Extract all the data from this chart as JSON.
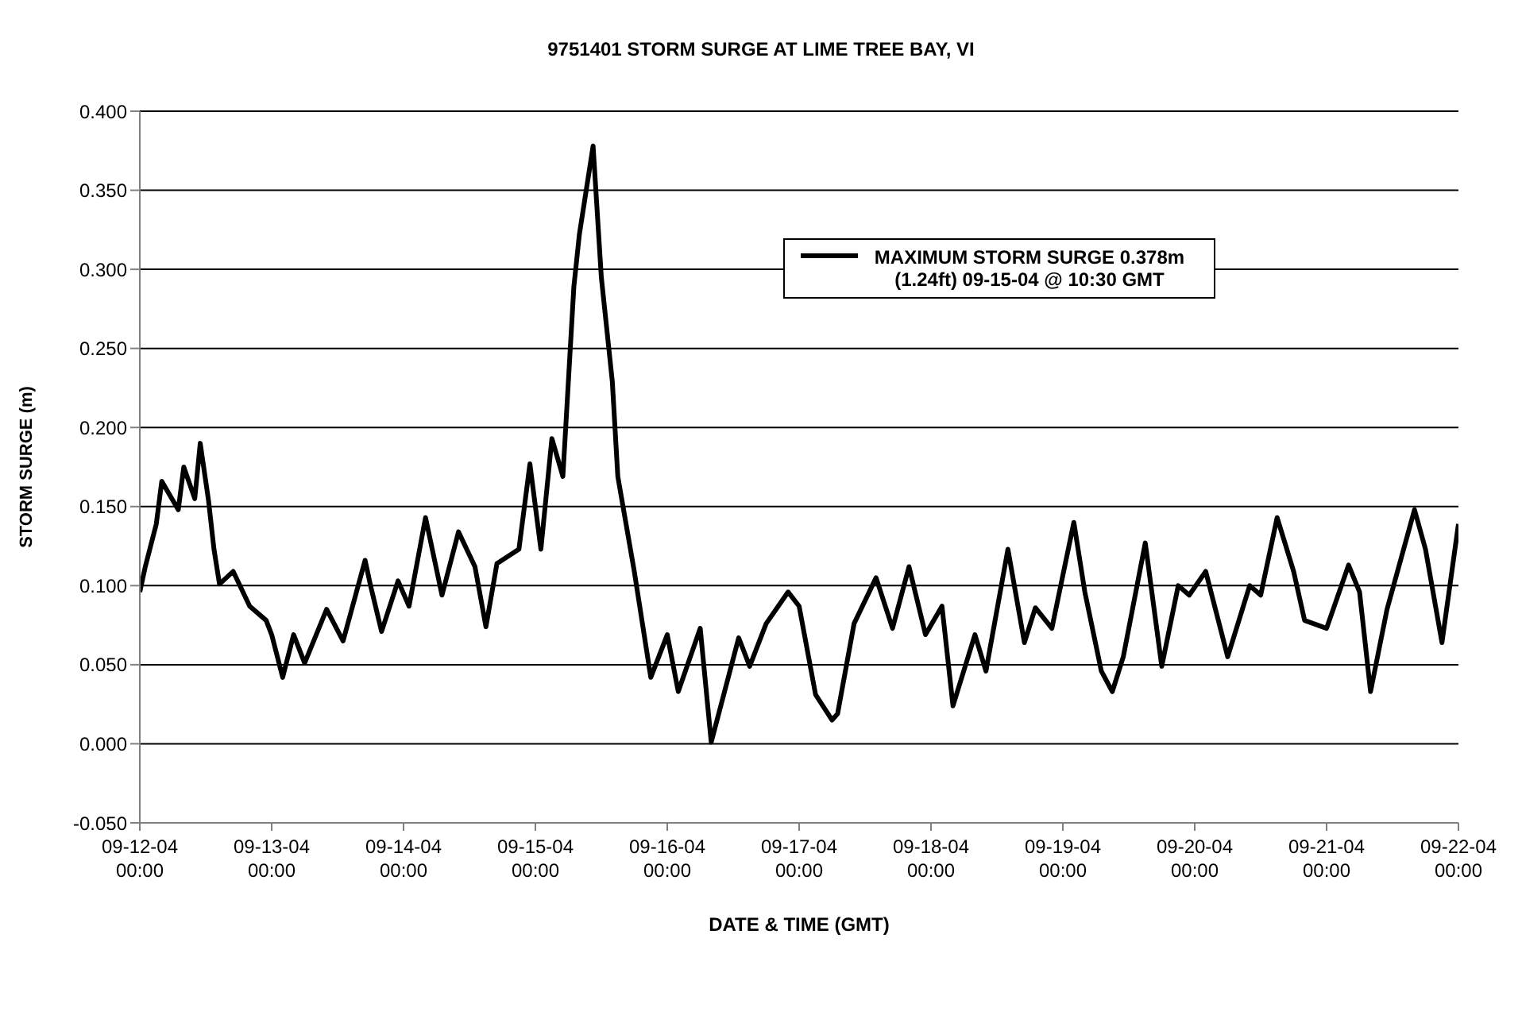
{
  "chart_data": {
    "type": "line",
    "title": "9751401 STORM SURGE AT LIME TREE BAY, VI",
    "xlabel": "DATE & TIME (GMT)",
    "ylabel": "STORM SURGE (m)",
    "x": [
      "--09-12T00:00",
      "--09-12T01:00",
      "--09-12T03:00",
      "--09-12T04:00",
      "--09-12T07:00",
      "--09-12T08:00",
      "--09-12T10:00",
      "--09-12T11:00",
      "--09-12T12:30",
      "--09-12T13:30",
      "--09-12T14:30",
      "--09-12T17:00",
      "--09-12T20:00",
      "--09-12T23:00",
      "--09-13T00:00",
      "--09-13T02:00",
      "--09-13T04:00",
      "--09-13T06:00",
      "--09-13T10:00",
      "--09-13T13:00",
      "--09-13T17:00",
      "--09-13T18:00",
      "--09-13T20:00",
      "--09-13T23:00",
      "--09-14T01:00",
      "--09-14T04:00",
      "--09-14T07:00",
      "--09-14T10:00",
      "--09-14T13:00",
      "--09-14T15:00",
      "--09-14T17:00",
      "--09-14T21:00",
      "--09-14T23:00",
      "--09-15T01:00",
      "--09-15T03:00",
      "--09-15T05:00",
      "--09-15T06:00",
      "--09-15T07:00",
      "--09-15T08:00",
      "--09-15T10:30",
      "--09-15T12:00",
      "--09-15T14:00",
      "--09-15T15:00",
      "--09-15T18:00",
      "--09-15T21:00",
      "--09-16T00:00",
      "--09-16T02:00",
      "--09-16T06:00",
      "--09-16T08:00",
      "--09-16T13:00",
      "--09-16T15:00",
      "--09-16T18:00",
      "--09-16T22:00",
      "--09-17T00:00",
      "--09-17T03:00",
      "--09-17T06:00",
      "--09-17T07:00",
      "--09-17T10:00",
      "--09-17T14:00",
      "--09-17T17:00",
      "--09-17T20:00",
      "--09-17T23:00",
      "--09-18T02:00",
      "--09-18T04:00",
      "--09-18T08:00",
      "--09-18T10:00",
      "--09-18T14:00",
      "--09-18T17:00",
      "--09-18T19:00",
      "--09-18T22:00",
      "--09-19T02:00",
      "--09-19T04:00",
      "--09-19T07:00",
      "--09-19T09:00",
      "--09-19T11:00",
      "--09-19T15:00",
      "--09-19T18:00",
      "--09-19T21:00",
      "--09-19T23:00",
      "--09-20T02:00",
      "--09-20T06:00",
      "--09-20T10:00",
      "--09-20T12:00",
      "--09-20T15:00",
      "--09-20T18:00",
      "--09-20T20:00",
      "--09-21T00:00",
      "--09-21T04:00",
      "--09-21T06:00",
      "--09-21T08:00",
      "--09-21T11:00",
      "--09-21T16:00",
      "--09-21T18:00",
      "--09-21T21:00",
      "--09-22T00:00"
    ],
    "series": [
      {
        "name": "MAXIMUM STORM SURGE 0.378m (1.24ft) 09-15-04 @ 10:30 GMT",
        "color": "#000000",
        "values": [
          0.096,
          0.112,
          0.139,
          0.166,
          0.148,
          0.175,
          0.155,
          0.19,
          0.154,
          0.123,
          0.101,
          0.109,
          0.087,
          0.078,
          0.069,
          0.042,
          0.069,
          0.051,
          0.085,
          0.065,
          0.116,
          0.1,
          0.071,
          0.103,
          0.087,
          0.143,
          0.094,
          0.134,
          0.112,
          0.074,
          0.114,
          0.123,
          0.177,
          0.123,
          0.193,
          0.169,
          0.229,
          0.289,
          0.322,
          0.378,
          0.295,
          0.229,
          0.169,
          0.109,
          0.042,
          0.069,
          0.033,
          0.073,
          0.001,
          0.067,
          0.049,
          0.076,
          0.096,
          0.087,
          0.031,
          0.015,
          0.019,
          0.076,
          0.105,
          0.073,
          0.112,
          0.069,
          0.087,
          0.024,
          0.069,
          0.046,
          0.123,
          0.064,
          0.086,
          0.073,
          0.14,
          0.096,
          0.046,
          0.033,
          0.055,
          0.127,
          0.049,
          0.1,
          0.094,
          0.109,
          0.055,
          0.1,
          0.094,
          0.143,
          0.109,
          0.078,
          0.073,
          0.113,
          0.096,
          0.033,
          0.085,
          0.148,
          0.123,
          0.064,
          0.139
        ]
      }
    ],
    "xlim": [
      "--09-12T00:00",
      "--09-22T00:00"
    ],
    "xticks": [
      {
        "value": "--09-12T00:00",
        "label": "09-12-04 00:00"
      },
      {
        "value": "--09-13T00:00",
        "label": "09-13-04 00:00"
      },
      {
        "value": "--09-14T00:00",
        "label": "09-14-04 00:00"
      },
      {
        "value": "--09-15T00:00",
        "label": "09-15-04 00:00"
      },
      {
        "value": "--09-16T00:00",
        "label": "09-16-04 00:00"
      },
      {
        "value": "--09-17T00:00",
        "label": "09-17-04 00:00"
      },
      {
        "value": "--09-18T00:00",
        "label": "09-18-04 00:00"
      },
      {
        "value": "--09-19T00:00",
        "label": "09-19-04 00:00"
      },
      {
        "value": "--09-20T00:00",
        "label": "09-20-04 00:00"
      },
      {
        "value": "--09-21T00:00",
        "label": "09-21-04 00:00"
      },
      {
        "value": "--09-22T00:00",
        "label": "09-22-04 00:00"
      }
    ],
    "ylim": [
      -0.05,
      0.4
    ],
    "yticks": [
      {
        "value": -0.05,
        "label": "-0.050"
      },
      {
        "value": 0,
        "label": "0.000"
      },
      {
        "value": 0.05,
        "label": "0.050"
      },
      {
        "value": 0.1,
        "label": "0.100"
      },
      {
        "value": 0.15,
        "label": "0.150"
      },
      {
        "value": 0.2,
        "label": "0.200"
      },
      {
        "value": 0.25,
        "label": "0.250"
      },
      {
        "value": 0.3,
        "label": "0.300"
      },
      {
        "value": 0.35,
        "label": "0.350"
      },
      {
        "value": 0.4,
        "label": "0.400"
      }
    ],
    "grid": "y",
    "legend": "top right",
    "marker": "none",
    "line_style": "solid"
  }
}
